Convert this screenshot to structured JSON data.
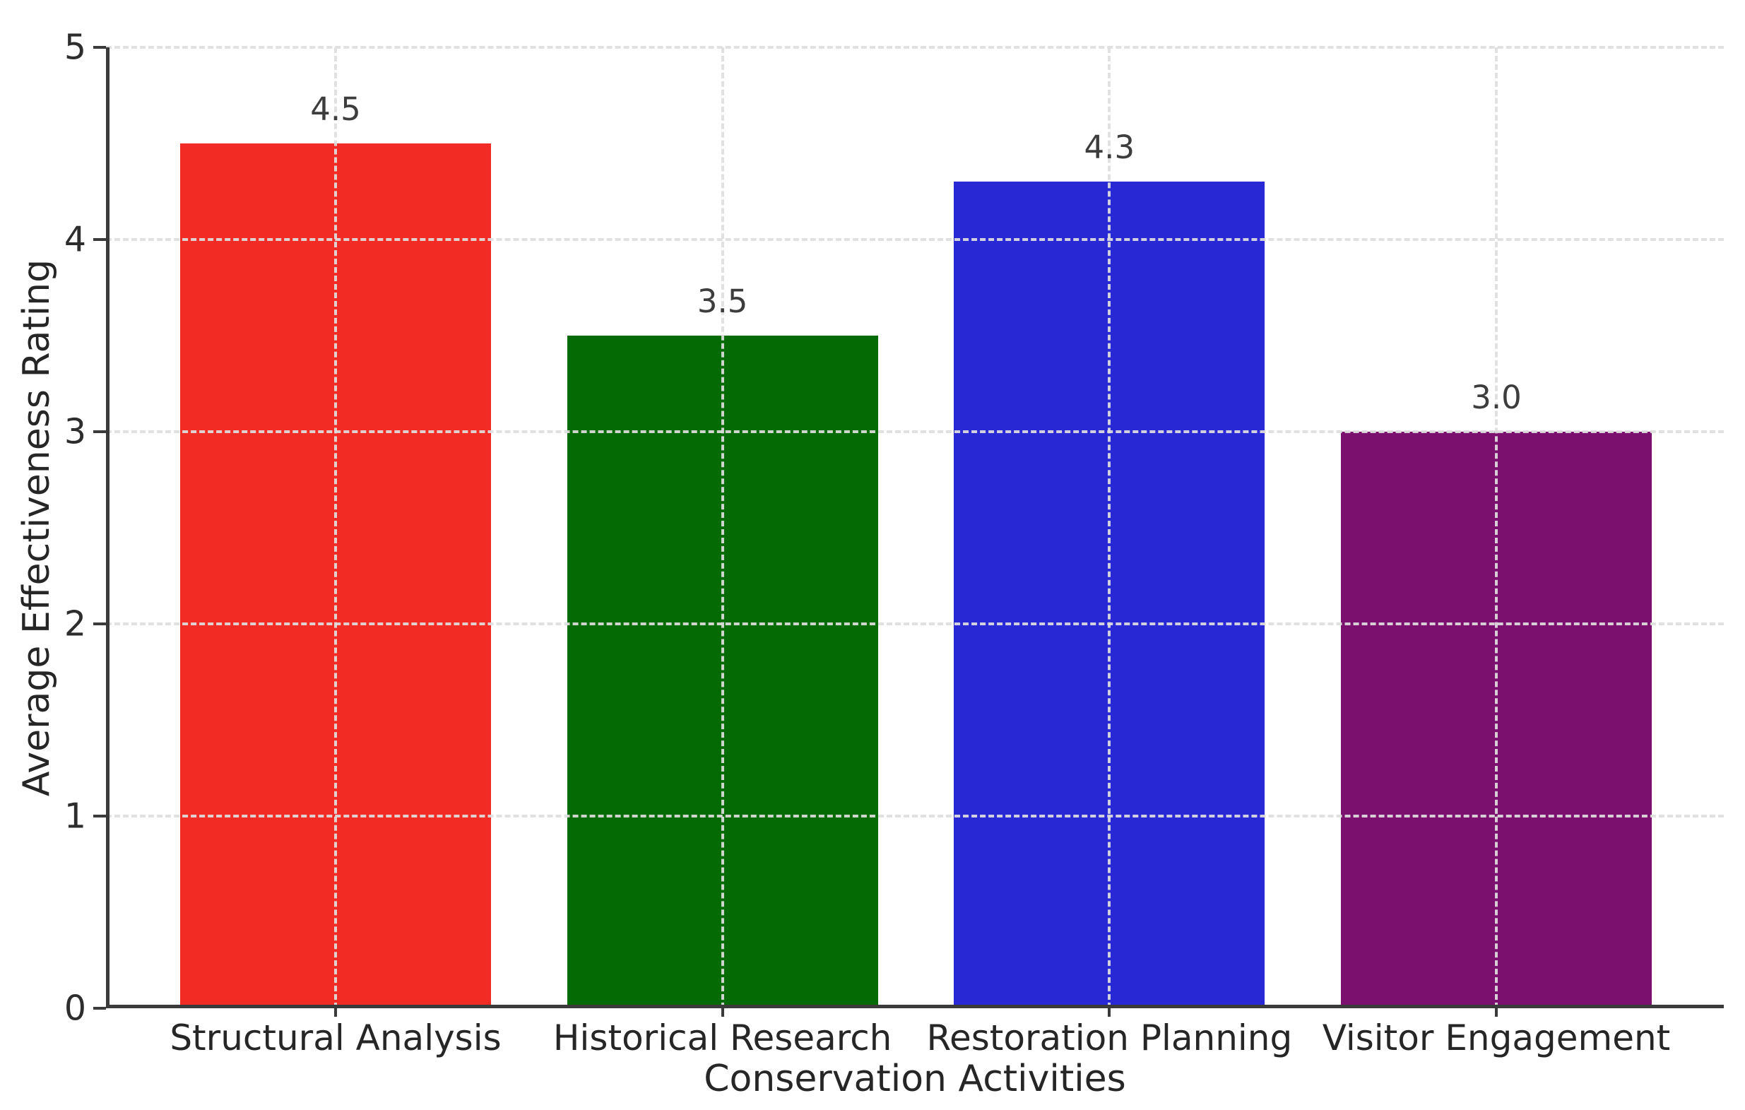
{
  "chart_data": {
    "type": "bar",
    "categories": [
      "Structural Analysis",
      "Historical Research",
      "Restoration Planning",
      "Visitor Engagement"
    ],
    "values": [
      4.5,
      3.5,
      4.3,
      3.0
    ],
    "value_labels": [
      "4.5",
      "3.5",
      "4.3",
      "3.0"
    ],
    "bar_colors": [
      "#f22b25",
      "#046a04",
      "#2828d5",
      "#7c106e"
    ],
    "title": "",
    "xlabel": "Conservation Activities",
    "ylabel": "Average Effectiveness Rating",
    "ylim": [
      0,
      5
    ],
    "yticks": [
      "0",
      "1",
      "2",
      "3",
      "4",
      "5"
    ],
    "grid": "dashed gridlines on both axes, drawn over bars",
    "legend": "none",
    "background": "#ffffff"
  },
  "colors": {
    "axis": "#3a3a3a",
    "text": "#262626",
    "value_label_text": "#3d3d3d",
    "gridline": "#dedede",
    "background": "#ffffff"
  }
}
